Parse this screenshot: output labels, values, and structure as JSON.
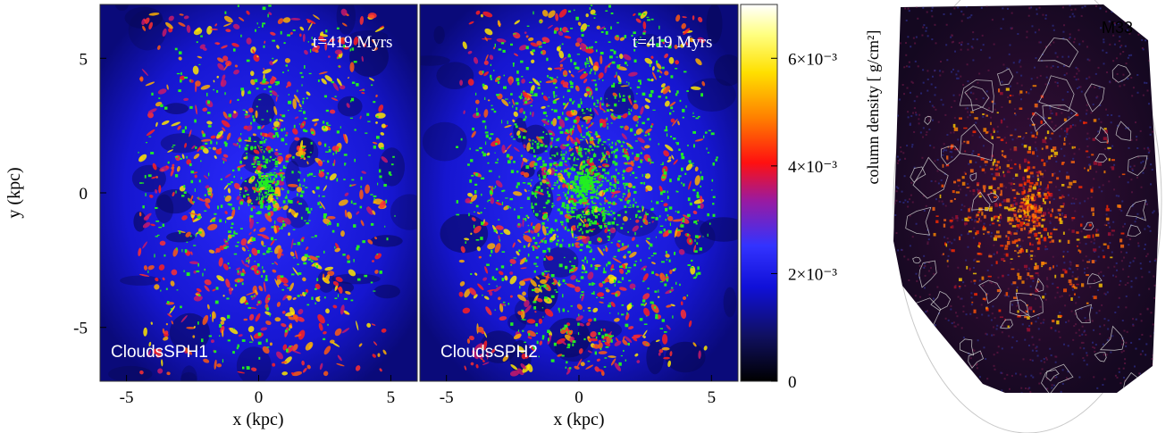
{
  "chart_data": [
    {
      "type": "heatmap",
      "panel": "left",
      "label": "CloudsSPH1",
      "time_label": "t=419 Myrs",
      "xlabel": "x (kpc)",
      "ylabel": "y (kpc)",
      "xlim": [
        -6,
        6
      ],
      "ylim": [
        -7,
        7
      ],
      "xticks": [
        -5,
        0,
        5
      ],
      "yticks": [
        -5,
        0,
        5
      ],
      "colormap": [
        "#000000",
        "#0000ff",
        "#ff0000",
        "#ffff00",
        "#ffffff"
      ],
      "overlay": {
        "description": "clouds",
        "color": "#22ee22"
      }
    },
    {
      "type": "heatmap",
      "panel": "middle",
      "label": "CloudsSPH2",
      "time_label": "t=419 Myrs",
      "xlabel": "x (kpc)",
      "xlim": [
        -6,
        6
      ],
      "ylim": [
        -7,
        7
      ],
      "xticks": [
        -5,
        0,
        5
      ],
      "colormap": [
        "#000000",
        "#0000ff",
        "#ff0000",
        "#ffff00",
        "#ffffff"
      ],
      "overlay": {
        "description": "clouds",
        "color": "#22ee22"
      },
      "colorbar": {
        "range": [
          0,
          0.007
        ],
        "ticks": [
          {
            "value": 0,
            "label": "0"
          },
          {
            "value": 0.002,
            "label": "2×10⁻³"
          },
          {
            "value": 0.004,
            "label": "4×10⁻³"
          },
          {
            "value": 0.006,
            "label": "6×10⁻³"
          }
        ],
        "label": "column density [ g/cm²]"
      }
    },
    {
      "type": "heatmap",
      "panel": "right",
      "label": "M33",
      "colormap": [
        "#000000",
        "#3a0a60",
        "#ff2200",
        "#ffcc00"
      ],
      "contour_color": "#dddddd"
    }
  ],
  "colors": {
    "background_map": "#1515c8",
    "clouds": "#22ee22",
    "m33_background": "#1a0826",
    "contour": "#cccccc"
  }
}
